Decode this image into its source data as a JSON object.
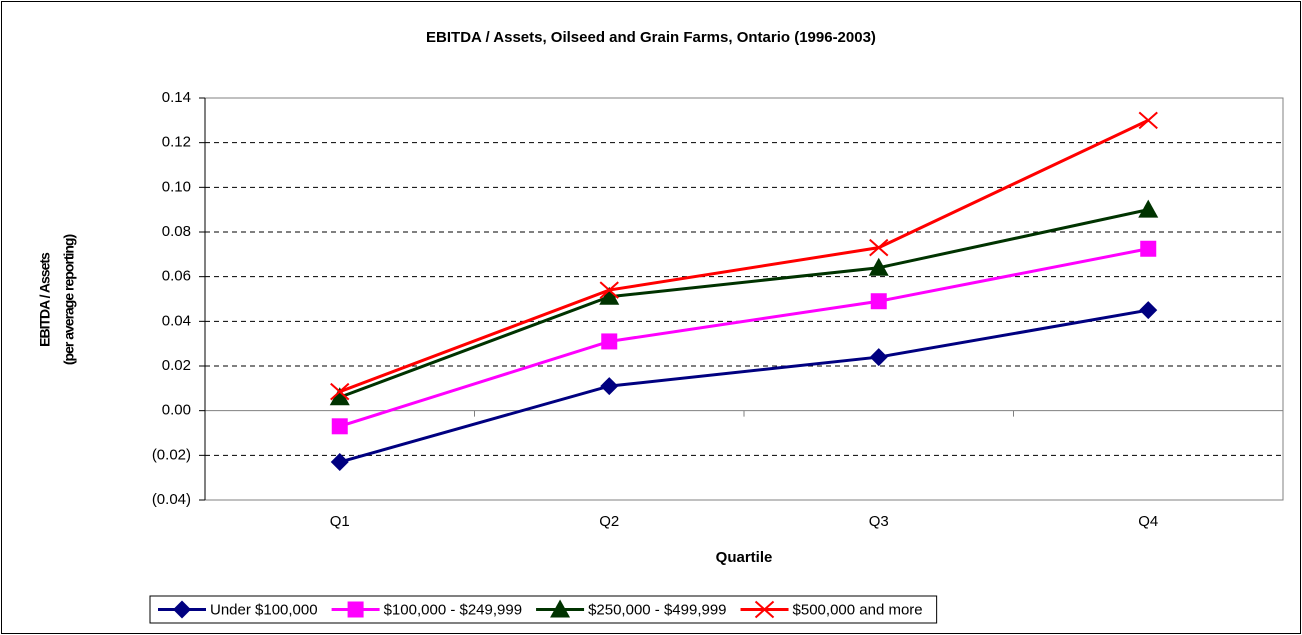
{
  "chart_data": {
    "type": "line",
    "title": "EBITDA / Assets, Oilseed and Grain Farms, Ontario (1996-2003)",
    "x_label": "Quartile",
    "y_label": [
      "EBITDA / Assets",
      "(per average reporting)"
    ],
    "categories": [
      "Q1",
      "Q2",
      "Q3",
      "Q4"
    ],
    "series": [
      {
        "name": "Under $100,000",
        "color": "#000080",
        "marker": "diamond",
        "values": [
          -0.023,
          0.011,
          0.024,
          0.045
        ]
      },
      {
        "name": "$100,000 - $249,999",
        "color": "#ff00ff",
        "marker": "square",
        "values": [
          -0.007,
          0.031,
          0.049,
          0.0725
        ]
      },
      {
        "name": "$250,000 - $499,999",
        "color": "#003300",
        "marker": "triangle",
        "values": [
          0.006,
          0.051,
          0.064,
          0.09
        ]
      },
      {
        "name": "$500,000 and more",
        "color": "#ff0000",
        "marker": "x",
        "values": [
          0.0085,
          0.054,
          0.073,
          0.13
        ]
      }
    ],
    "ylim": [
      -0.04,
      0.14
    ],
    "yticks": [
      {
        "value": -0.04,
        "label": "(0.04)"
      },
      {
        "value": -0.02,
        "label": "(0.02)"
      },
      {
        "value": 0,
        "label": "0.00"
      },
      {
        "value": 0.02,
        "label": "0.02"
      },
      {
        "value": 0.04,
        "label": "0.04"
      },
      {
        "value": 0.06,
        "label": "0.06"
      },
      {
        "value": 0.08,
        "label": "0.08"
      },
      {
        "value": 0.1,
        "label": "0.10"
      },
      {
        "value": 0.12,
        "label": "0.12"
      },
      {
        "value": 0.14,
        "label": "0.14"
      }
    ],
    "grid": true,
    "legend": "bottom"
  }
}
